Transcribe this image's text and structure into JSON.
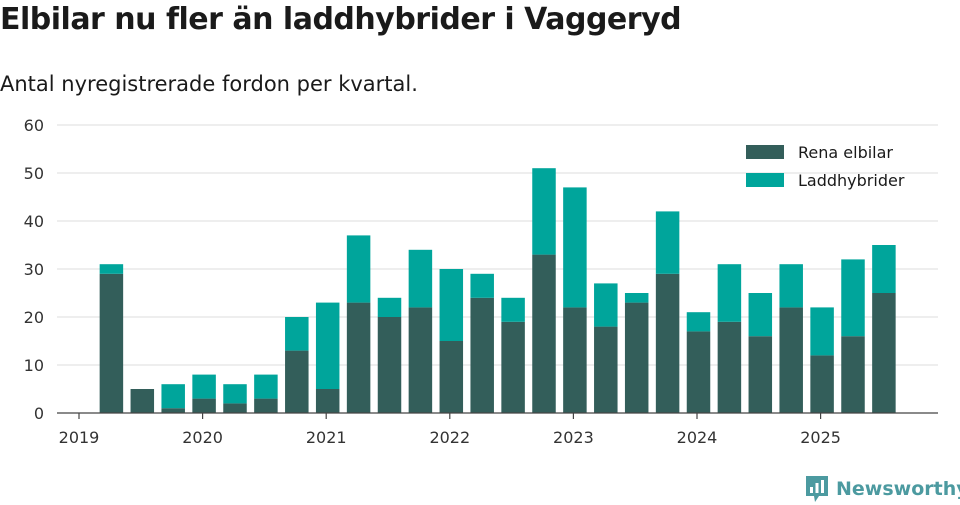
{
  "header": {
    "title": "Elbilar nu fler än laddhybrider i Vaggeryd",
    "subtitle": "Antal nyregistrerade fordon per kvartal."
  },
  "brand": {
    "name": "Newsworthy",
    "icon": "newsworthy-logo-icon",
    "color": "#4c9aa0"
  },
  "chart_data": {
    "type": "bar",
    "stacked": true,
    "categories": [
      "2019 Q2",
      "2019 Q3",
      "2019 Q4",
      "2020 Q1",
      "2020 Q2",
      "2020 Q3",
      "2020 Q4",
      "2021 Q1",
      "2021 Q2",
      "2021 Q3",
      "2021 Q4",
      "2022 Q1",
      "2022 Q2",
      "2022 Q3",
      "2022 Q4",
      "2023 Q1",
      "2023 Q2",
      "2023 Q3",
      "2023 Q4",
      "2024 Q1",
      "2024 Q2",
      "2024 Q3",
      "2024 Q4",
      "2025 Q1",
      "2025 Q2",
      "2025 Q3"
    ],
    "series": [
      {
        "name": "Rena elbilar",
        "color": "#335e5a",
        "values": [
          29,
          5,
          1,
          3,
          2,
          3,
          13,
          5,
          23,
          20,
          22,
          15,
          24,
          19,
          33,
          22,
          18,
          23,
          29,
          17,
          19,
          16,
          22,
          12,
          16,
          25
        ]
      },
      {
        "name": "Laddhybrider",
        "color": "#00a59b",
        "values": [
          2,
          0,
          5,
          5,
          4,
          5,
          7,
          18,
          14,
          4,
          12,
          15,
          5,
          5,
          18,
          25,
          9,
          2,
          13,
          4,
          12,
          9,
          9,
          10,
          16,
          10
        ]
      }
    ],
    "x_tick_labels": [
      "2019",
      "2020",
      "2021",
      "2022",
      "2023",
      "2024",
      "2025"
    ],
    "y_ticks": [
      0,
      10,
      20,
      30,
      40,
      50,
      60
    ],
    "ylim": [
      0,
      60
    ],
    "grid": true,
    "legend_position": "top-right"
  }
}
